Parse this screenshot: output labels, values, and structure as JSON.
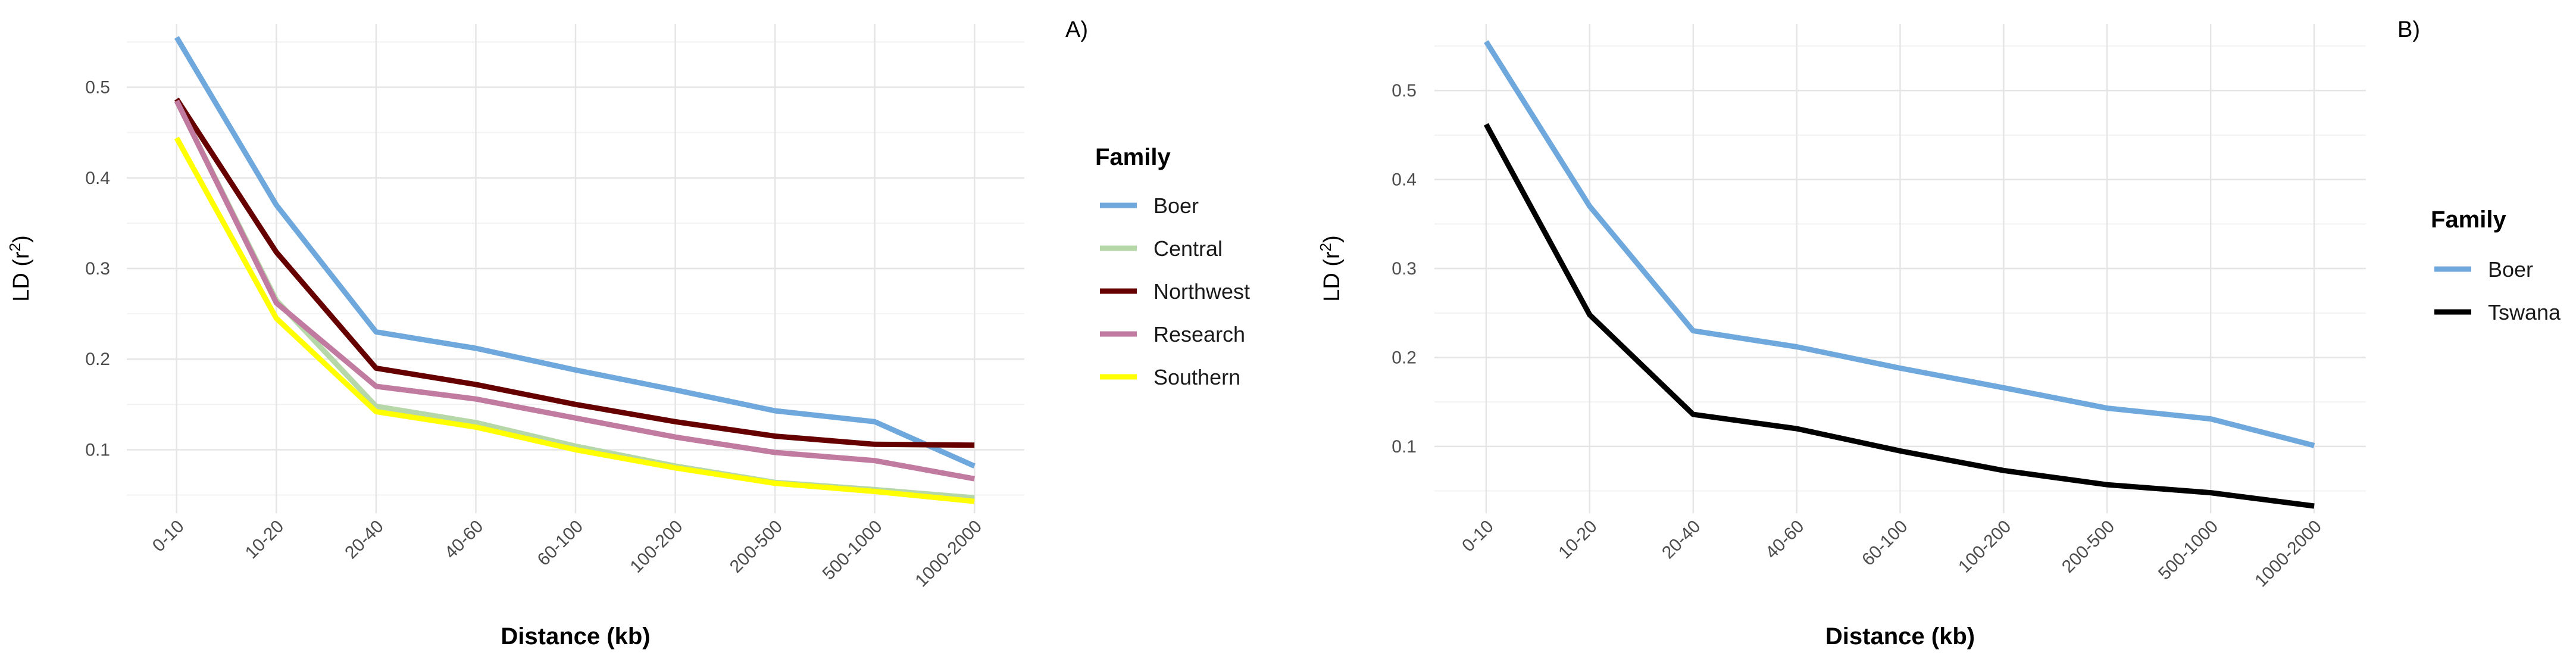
{
  "chart_data": [
    {
      "type": "line",
      "panel_label": "A)",
      "title": "",
      "xlabel": "Distance (kb)",
      "ylabel_main": "LD (r",
      "ylabel_sup": "2",
      "ylabel_close": ")",
      "categories": [
        "0-10",
        "10-20",
        "20-40",
        "40-60",
        "60-100",
        "100-200",
        "200-500",
        "500-1000",
        "1000-2000"
      ],
      "ylim": [
        0.03,
        0.57
      ],
      "yticks": [
        0.1,
        0.2,
        0.3,
        0.4,
        0.5
      ],
      "ytick_labels": [
        "0.1",
        "0.2",
        "0.3",
        "0.4",
        "0.5"
      ],
      "legend_title": "Family",
      "legend_position": "right",
      "series": [
        {
          "name": "Boer",
          "color": "#6fa8dc",
          "values": [
            0.555,
            0.37,
            0.23,
            0.212,
            0.188,
            0.166,
            0.143,
            0.131,
            0.082
          ]
        },
        {
          "name": "Central",
          "color": "#b6d7a8",
          "values": [
            0.485,
            0.265,
            0.148,
            0.13,
            0.104,
            0.082,
            0.064,
            0.056,
            0.047
          ]
        },
        {
          "name": "Northwest",
          "color": "#660000",
          "values": [
            0.487,
            0.318,
            0.19,
            0.172,
            0.15,
            0.131,
            0.115,
            0.106,
            0.105
          ]
        },
        {
          "name": "Research",
          "color": "#c27ba0",
          "values": [
            0.485,
            0.262,
            0.17,
            0.156,
            0.135,
            0.114,
            0.097,
            0.088,
            0.068
          ]
        },
        {
          "name": "Southern",
          "color": "#ffff00",
          "values": [
            0.444,
            0.245,
            0.142,
            0.125,
            0.1,
            0.08,
            0.063,
            0.054,
            0.043
          ]
        }
      ]
    },
    {
      "type": "line",
      "panel_label": "B)",
      "title": "",
      "xlabel": "Distance (kb)",
      "ylabel_main": "LD (r",
      "ylabel_sup": "2",
      "ylabel_close": ")",
      "categories": [
        "0-10",
        "10-20",
        "20-40",
        "40-60",
        "60-100",
        "100-200",
        "200-500",
        "500-1000",
        "1000-2000"
      ],
      "ylim": [
        0.025,
        0.575
      ],
      "yticks": [
        0.1,
        0.2,
        0.3,
        0.4,
        0.5
      ],
      "ytick_labels": [
        "0.1",
        "0.2",
        "0.3",
        "0.4",
        "0.5"
      ],
      "legend_title": "Family",
      "legend_position": "right",
      "series": [
        {
          "name": "Boer",
          "color": "#6fa8dc",
          "values": [
            0.555,
            0.37,
            0.23,
            0.212,
            0.188,
            0.166,
            0.143,
            0.131,
            0.101
          ]
        },
        {
          "name": "Tswana",
          "color": "#000000",
          "values": [
            0.462,
            0.248,
            0.136,
            0.12,
            0.095,
            0.073,
            0.057,
            0.048,
            0.033
          ]
        }
      ]
    }
  ]
}
